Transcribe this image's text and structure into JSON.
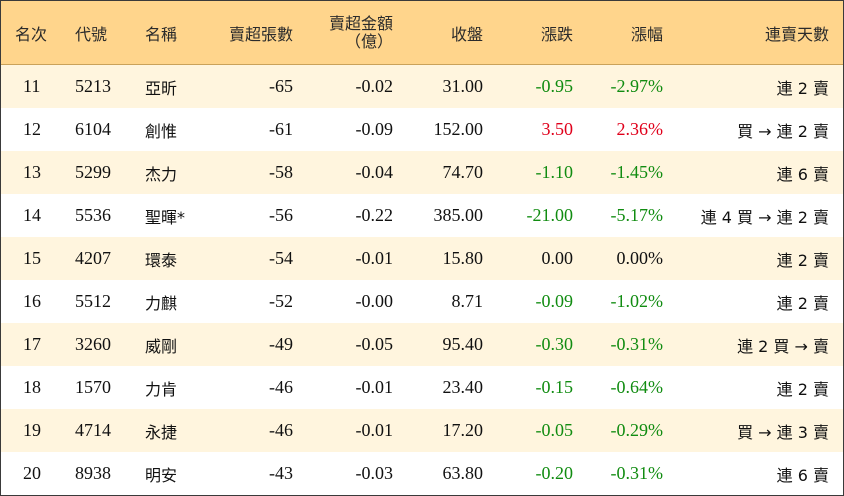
{
  "colors": {
    "header_bg": "#ffd58c",
    "row_alt_bg": "#fff5de",
    "up": "#e0001b",
    "down": "#118c11"
  },
  "headers": {
    "rank": "名次",
    "code": "代號",
    "name": "名稱",
    "net_sell_lots": "賣超張數",
    "net_sell_amount_line1": "賣超金額",
    "net_sell_amount_line2": "（億）",
    "close": "收盤",
    "change": "漲跌",
    "change_pct": "漲幅",
    "streak": "連賣天數"
  },
  "rows": [
    {
      "rank": "11",
      "code": "5213",
      "name": "亞昕",
      "lots": "-65",
      "amount": "-0.02",
      "close": "31.00",
      "change": "-0.95",
      "pct": "-2.97%",
      "dir": "neg",
      "streak": "連 2 賣"
    },
    {
      "rank": "12",
      "code": "6104",
      "name": "創惟",
      "lots": "-61",
      "amount": "-0.09",
      "close": "152.00",
      "change": "3.50",
      "pct": "2.36%",
      "dir": "pos",
      "streak": "買 → 連 2 賣"
    },
    {
      "rank": "13",
      "code": "5299",
      "name": "杰力",
      "lots": "-58",
      "amount": "-0.04",
      "close": "74.70",
      "change": "-1.10",
      "pct": "-1.45%",
      "dir": "neg",
      "streak": "連 6 賣"
    },
    {
      "rank": "14",
      "code": "5536",
      "name": "聖暉*",
      "lots": "-56",
      "amount": "-0.22",
      "close": "385.00",
      "change": "-21.00",
      "pct": "-5.17%",
      "dir": "neg",
      "streak": "連 4 買 → 連 2 賣"
    },
    {
      "rank": "15",
      "code": "4207",
      "name": "環泰",
      "lots": "-54",
      "amount": "-0.01",
      "close": "15.80",
      "change": "0.00",
      "pct": "0.00%",
      "dir": "flat",
      "streak": "連 2 賣"
    },
    {
      "rank": "16",
      "code": "5512",
      "name": "力麒",
      "lots": "-52",
      "amount": "-0.00",
      "close": "8.71",
      "change": "-0.09",
      "pct": "-1.02%",
      "dir": "neg",
      "streak": "連 2 賣"
    },
    {
      "rank": "17",
      "code": "3260",
      "name": "威剛",
      "lots": "-49",
      "amount": "-0.05",
      "close": "95.40",
      "change": "-0.30",
      "pct": "-0.31%",
      "dir": "neg",
      "streak": "連 2 買 → 賣"
    },
    {
      "rank": "18",
      "code": "1570",
      "name": "力肯",
      "lots": "-46",
      "amount": "-0.01",
      "close": "23.40",
      "change": "-0.15",
      "pct": "-0.64%",
      "dir": "neg",
      "streak": "連 2 賣"
    },
    {
      "rank": "19",
      "code": "4714",
      "name": "永捷",
      "lots": "-46",
      "amount": "-0.01",
      "close": "17.20",
      "change": "-0.05",
      "pct": "-0.29%",
      "dir": "neg",
      "streak": "買 → 連 3 賣"
    },
    {
      "rank": "20",
      "code": "8938",
      "name": "明安",
      "lots": "-43",
      "amount": "-0.03",
      "close": "63.80",
      "change": "-0.20",
      "pct": "-0.31%",
      "dir": "neg",
      "streak": "連 6 賣"
    }
  ]
}
